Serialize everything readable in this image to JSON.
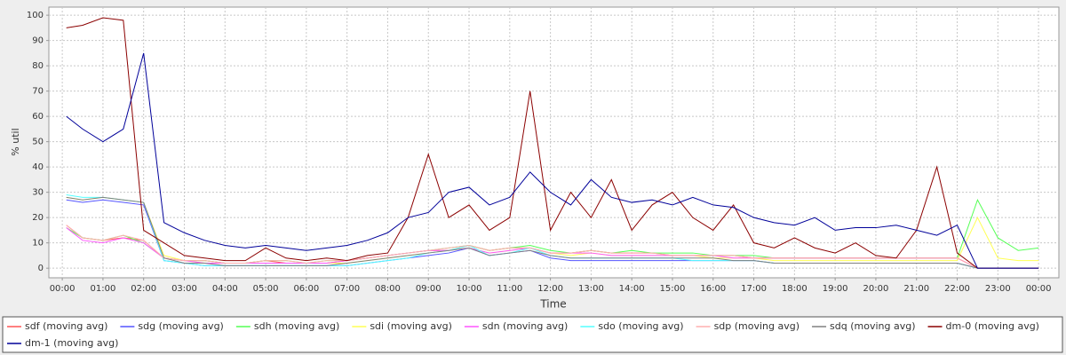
{
  "chart_data": {
    "type": "line",
    "y_label": "% util",
    "x_label": "Time",
    "x": [
      0.1,
      0.5,
      1,
      1.5,
      2,
      2.5,
      3,
      3.5,
      4,
      4.5,
      5,
      5.5,
      6,
      6.5,
      7,
      7.5,
      8,
      8.5,
      9,
      9.5,
      10,
      10.5,
      11,
      11.5,
      12,
      12.5,
      13,
      13.5,
      14,
      14.5,
      15,
      15.5,
      16,
      16.5,
      17,
      17.5,
      18,
      18.5,
      19,
      19.5,
      20,
      20.5,
      21,
      21.5,
      22,
      22.5,
      23,
      23.5,
      24
    ],
    "xlim": [
      -0.33,
      24.5
    ],
    "xticks": [
      {
        "value": 0,
        "label": "00:00"
      },
      {
        "value": 1,
        "label": "01:00"
      },
      {
        "value": 2,
        "label": "02:00"
      },
      {
        "value": 3,
        "label": "03:00"
      },
      {
        "value": 4,
        "label": "04:00"
      },
      {
        "value": 5,
        "label": "05:00"
      },
      {
        "value": 6,
        "label": "06:00"
      },
      {
        "value": 7,
        "label": "07:00"
      },
      {
        "value": 8,
        "label": "08:00"
      },
      {
        "value": 9,
        "label": "09:00"
      },
      {
        "value": 10,
        "label": "10:00"
      },
      {
        "value": 11,
        "label": "11:00"
      },
      {
        "value": 12,
        "label": "12:00"
      },
      {
        "value": 13,
        "label": "13:00"
      },
      {
        "value": 14,
        "label": "14:00"
      },
      {
        "value": 15,
        "label": "15:00"
      },
      {
        "value": 16,
        "label": "16:00"
      },
      {
        "value": 17,
        "label": "17:00"
      },
      {
        "value": 18,
        "label": "18:00"
      },
      {
        "value": 19,
        "label": "19:00"
      },
      {
        "value": 20,
        "label": "20:00"
      },
      {
        "value": 21,
        "label": "21:00"
      },
      {
        "value": 22,
        "label": "22:00"
      },
      {
        "value": 23,
        "label": "23:00"
      },
      {
        "value": 24,
        "label": "00:00"
      }
    ],
    "ylim": [
      -3.8,
      103.2
    ],
    "yticks": [
      0,
      10,
      20,
      30,
      40,
      50,
      60,
      70,
      80,
      90,
      100
    ],
    "grid": true,
    "series": [
      {
        "name": "sdf (moving avg)",
        "color": "#ff5555",
        "values": [
          17,
          12,
          11,
          12,
          11,
          4,
          3,
          3,
          2,
          2,
          3,
          2,
          2,
          2,
          3,
          4,
          5,
          6,
          7,
          7,
          9,
          7,
          8,
          8,
          6,
          6,
          7,
          6,
          6,
          6,
          5,
          5,
          5,
          5,
          4,
          4,
          4,
          4,
          4,
          4,
          4,
          4,
          4,
          4,
          4,
          0,
          0,
          0,
          0
        ]
      },
      {
        "name": "sdg (moving avg)",
        "color": "#5555ff",
        "values": [
          27,
          26,
          27,
          26,
          25,
          3,
          2,
          1,
          1,
          1,
          1,
          1,
          1,
          1,
          1,
          2,
          3,
          4,
          5,
          6,
          8,
          5,
          6,
          7,
          4,
          3,
          3,
          3,
          3,
          3,
          3,
          3,
          3,
          3,
          3,
          2,
          2,
          2,
          2,
          2,
          2,
          2,
          2,
          2,
          2,
          0,
          0,
          0,
          0
        ]
      },
      {
        "name": "sdh (moving avg)",
        "color": "#55ff55",
        "values": [
          16,
          12,
          11,
          13,
          10,
          4,
          3,
          3,
          2,
          2,
          3,
          3,
          2,
          3,
          3,
          4,
          5,
          6,
          7,
          8,
          9,
          7,
          8,
          9,
          7,
          6,
          7,
          6,
          7,
          6,
          6,
          6,
          5,
          5,
          5,
          4,
          4,
          4,
          4,
          4,
          4,
          4,
          4,
          4,
          4,
          27,
          12,
          7,
          8
        ]
      },
      {
        "name": "sdi (moving avg)",
        "color": "#ffff55",
        "values": [
          28,
          27,
          28,
          27,
          26,
          5,
          3,
          2,
          2,
          2,
          2,
          2,
          2,
          2,
          2,
          3,
          4,
          5,
          6,
          7,
          8,
          6,
          7,
          8,
          6,
          5,
          6,
          5,
          5,
          5,
          5,
          5,
          4,
          4,
          4,
          3,
          3,
          3,
          3,
          3,
          3,
          3,
          3,
          3,
          3,
          20,
          4,
          3,
          3
        ]
      },
      {
        "name": "sdn (moving avg)",
        "color": "#ff55ff",
        "values": [
          16,
          11,
          10,
          12,
          10,
          4,
          3,
          2,
          2,
          2,
          2,
          2,
          2,
          2,
          3,
          4,
          5,
          6,
          7,
          7,
          8,
          6,
          7,
          8,
          6,
          6,
          6,
          5,
          5,
          5,
          5,
          5,
          5,
          4,
          4,
          4,
          4,
          4,
          4,
          4,
          4,
          4,
          4,
          4,
          4,
          0,
          0,
          0,
          0
        ]
      },
      {
        "name": "sdo (moving avg)",
        "color": "#55ffff",
        "values": [
          29,
          28,
          28,
          27,
          26,
          3,
          2,
          1,
          1,
          1,
          1,
          1,
          1,
          1,
          1,
          2,
          3,
          4,
          6,
          7,
          9,
          5,
          6,
          8,
          5,
          4,
          4,
          4,
          4,
          4,
          4,
          3,
          3,
          3,
          3,
          2,
          2,
          2,
          2,
          2,
          2,
          2,
          2,
          2,
          2,
          0,
          0,
          0,
          0
        ]
      },
      {
        "name": "sdp (moving avg)",
        "color": "#ffafaf",
        "values": [
          17,
          12,
          11,
          13,
          11,
          4,
          3,
          3,
          2,
          2,
          3,
          3,
          2,
          3,
          3,
          4,
          5,
          6,
          7,
          8,
          9,
          7,
          8,
          8,
          6,
          6,
          7,
          6,
          6,
          6,
          5,
          5,
          5,
          5,
          4,
          4,
          4,
          4,
          4,
          4,
          4,
          4,
          4,
          4,
          4,
          0,
          0,
          0,
          0
        ]
      },
      {
        "name": "sdq (moving avg)",
        "color": "#808080",
        "values": [
          28,
          27,
          28,
          27,
          26,
          4,
          2,
          2,
          1,
          1,
          1,
          1,
          1,
          1,
          2,
          3,
          4,
          5,
          6,
          7,
          8,
          5,
          6,
          7,
          5,
          4,
          4,
          4,
          4,
          4,
          4,
          4,
          4,
          3,
          3,
          2,
          2,
          2,
          2,
          2,
          2,
          2,
          2,
          2,
          2,
          0,
          0,
          0,
          0
        ]
      },
      {
        "name": "dm-0 (moving avg)",
        "color": "#8b0000",
        "values": [
          95,
          96,
          99,
          98,
          15,
          10,
          5,
          4,
          3,
          3,
          8,
          4,
          3,
          4,
          3,
          5,
          6,
          20,
          45,
          20,
          25,
          15,
          20,
          70,
          15,
          30,
          20,
          35,
          15,
          25,
          30,
          20,
          15,
          25,
          10,
          8,
          12,
          8,
          6,
          10,
          5,
          4,
          15,
          40,
          6,
          0,
          0,
          0,
          0
        ]
      },
      {
        "name": "dm-1 (moving avg)",
        "color": "#000099",
        "values": [
          60,
          55,
          50,
          55,
          85,
          18,
          14,
          11,
          9,
          8,
          9,
          8,
          7,
          8,
          9,
          11,
          14,
          20,
          22,
          30,
          32,
          25,
          28,
          38,
          30,
          25,
          35,
          28,
          26,
          27,
          25,
          28,
          25,
          24,
          20,
          18,
          17,
          20,
          15,
          16,
          16,
          17,
          15,
          13,
          17,
          0,
          0,
          0,
          0
        ]
      }
    ]
  }
}
